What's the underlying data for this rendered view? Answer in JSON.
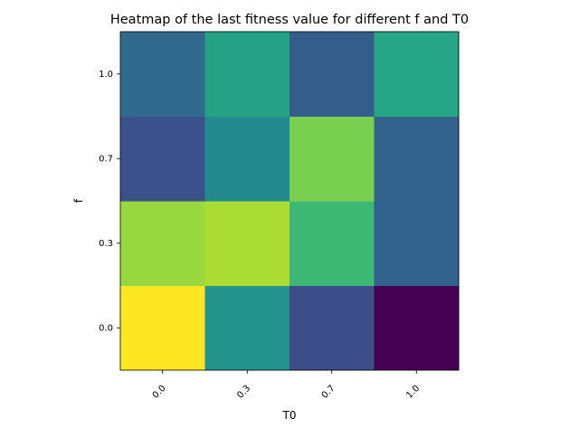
{
  "chart_data": {
    "type": "heatmap",
    "title": "Heatmap of the last fitness value for different f and T0",
    "xlabel": "T0",
    "ylabel": "f",
    "x_categories": [
      "0.0",
      "0.3",
      "0.7",
      "1.0"
    ],
    "y_categories": [
      "0.0",
      "0.3",
      "0.7",
      "1.0"
    ],
    "values": [
      [
        1.0,
        0.52,
        0.24,
        0.0
      ],
      [
        0.85,
        0.88,
        0.68,
        0.32
      ],
      [
        0.25,
        0.48,
        0.8,
        0.32
      ],
      [
        0.35,
        0.58,
        0.3,
        0.6
      ]
    ],
    "value_range": [
      0,
      1
    ],
    "colormap": "viridis",
    "colorbar": false
  }
}
